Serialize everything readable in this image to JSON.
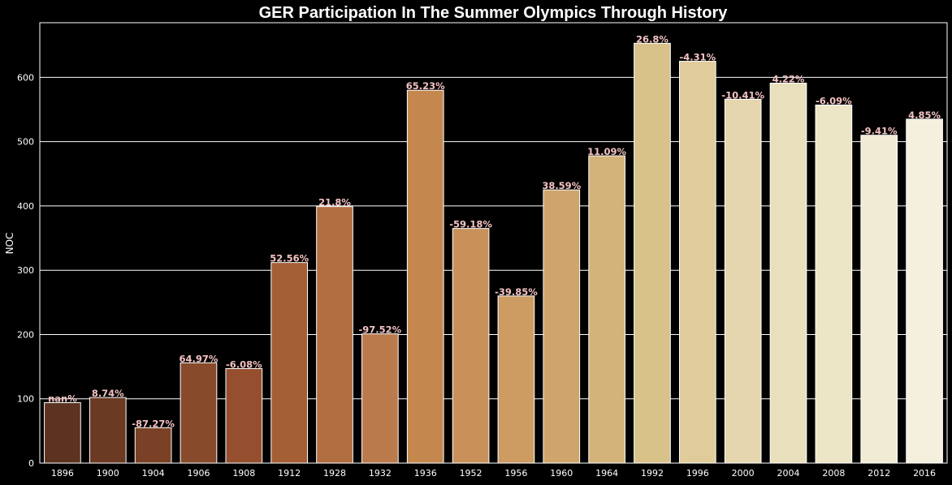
{
  "chart_data": {
    "type": "bar",
    "title": "GER Participation In The Summer Olympics Through History",
    "xlabel": "",
    "ylabel": "NOC",
    "ylim": [
      0,
      685
    ],
    "yticks": [
      0,
      100,
      200,
      300,
      400,
      500,
      600
    ],
    "grid": true,
    "categories": [
      "1896",
      "1900",
      "1904",
      "1906",
      "1908",
      "1912",
      "1928",
      "1932",
      "1936",
      "1952",
      "1956",
      "1960",
      "1964",
      "1992",
      "1996",
      "2000",
      "2004",
      "2008",
      "2012",
      "2016"
    ],
    "values": [
      94,
      102,
      55,
      156,
      147,
      312,
      399,
      201,
      580,
      365,
      260,
      425,
      478,
      653,
      625,
      566,
      591,
      557,
      510,
      535
    ],
    "labels": [
      "nan%",
      "8.74%",
      "-87.27%",
      "64.97%",
      "-6.08%",
      "52.56%",
      "21.8%",
      "-97.52%",
      "65.23%",
      "-59.18%",
      "-39.85%",
      "38.59%",
      "11.09%",
      "26.8%",
      "-4.31%",
      "-10.41%",
      "4.22%",
      "-6.09%",
      "-9.41%",
      "4.85%"
    ],
    "colors": [
      "#5c3320",
      "#6b3a22",
      "#7a4126",
      "#874a2b",
      "#954f2e",
      "#a45f36",
      "#b16e41",
      "#ba7a4b",
      "#c4884f",
      "#c8915a",
      "#cc9c63",
      "#cfa56d",
      "#d4b37a",
      "#d9c28a",
      "#dfcc9a",
      "#e5d6ae",
      "#e8dfbc",
      "#ece5c6",
      "#f2ebd3",
      "#f5efde"
    ]
  }
}
